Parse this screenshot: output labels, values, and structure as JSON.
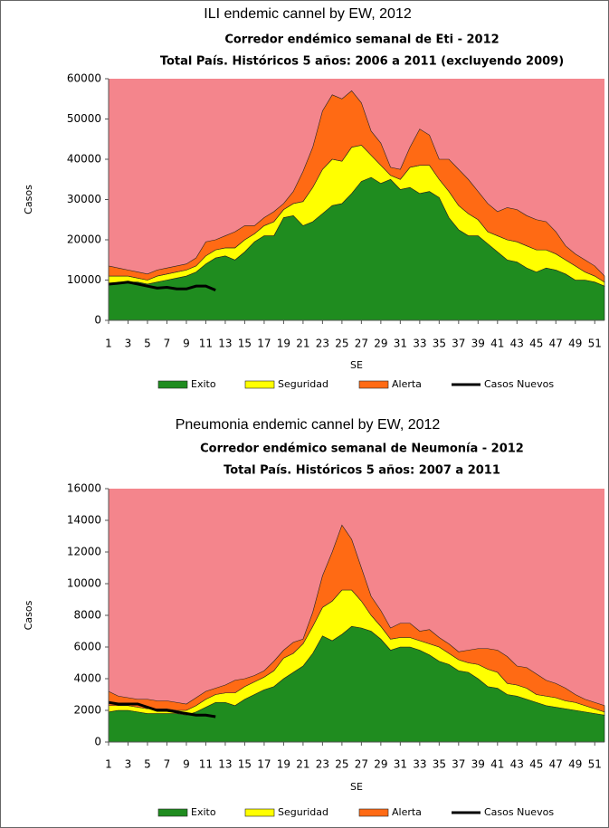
{
  "chart_data": [
    {
      "type": "area",
      "caption": "ILI endemic cannel by EW, 2012",
      "title": "Corredor endémico semanal de Eti - 2012",
      "subtitle": "Total País. Históricos 5 años: 2006 a 2011 (excluyendo 2009)",
      "xlabel": "SE",
      "ylabel": "Casos",
      "stacked": true,
      "background": "#f4858c",
      "legend": "bottom",
      "x": [
        1,
        2,
        3,
        4,
        5,
        6,
        7,
        8,
        9,
        10,
        11,
        12,
        13,
        14,
        15,
        16,
        17,
        18,
        19,
        20,
        21,
        22,
        23,
        24,
        25,
        26,
        27,
        28,
        29,
        30,
        31,
        32,
        33,
        34,
        35,
        36,
        37,
        38,
        39,
        40,
        41,
        42,
        43,
        44,
        45,
        46,
        47,
        48,
        49,
        50,
        51,
        52
      ],
      "xlim": [
        1,
        52
      ],
      "xticks": [
        1,
        3,
        5,
        7,
        9,
        11,
        13,
        15,
        17,
        19,
        21,
        23,
        25,
        27,
        29,
        31,
        33,
        35,
        37,
        39,
        41,
        43,
        45,
        47,
        49,
        51
      ],
      "ylim": [
        0,
        60000
      ],
      "yticks": [
        0,
        10000,
        20000,
        30000,
        40000,
        50000,
        60000
      ],
      "series": [
        {
          "name": "Exito",
          "color": "#1f8c1f",
          "values": [
            9000,
            9500,
            9500,
            9500,
            9000,
            9500,
            10000,
            10500,
            11000,
            12000,
            14000,
            15500,
            16000,
            15000,
            17000,
            19500,
            21000,
            21000,
            25500,
            26000,
            23500,
            24500,
            26500,
            28500,
            29000,
            31500,
            34500,
            35500,
            34000,
            35000,
            32500,
            33000,
            31500,
            32000,
            30500,
            25500,
            22500,
            21000,
            21000,
            19000,
            17000,
            15000,
            14500,
            13000,
            12000,
            13000,
            12500,
            11500,
            10000,
            10000,
            9500,
            8500
          ]
        },
        {
          "name": "Seguridad",
          "color": "#ffff00",
          "values": [
            2000,
            1500,
            1500,
            1000,
            1000,
            1500,
            1500,
            1500,
            1500,
            1500,
            2000,
            2000,
            2000,
            3000,
            3000,
            2000,
            2500,
            3500,
            2000,
            3000,
            6000,
            8500,
            11000,
            11500,
            10500,
            11500,
            9000,
            5500,
            4500,
            1000,
            2500,
            5000,
            7000,
            6500,
            4500,
            6500,
            6000,
            5500,
            4000,
            3000,
            4000,
            5000,
            5000,
            5500,
            5500,
            4500,
            4000,
            3500,
            3500,
            2000,
            1500,
            1000
          ]
        },
        {
          "name": "Alerta",
          "color": "#ff6a14",
          "values": [
            2500,
            2000,
            1500,
            1500,
            1500,
            1500,
            1500,
            1500,
            1500,
            2000,
            3500,
            2500,
            3000,
            4000,
            3500,
            2000,
            2000,
            2500,
            1500,
            3000,
            7500,
            10000,
            14500,
            16000,
            15500,
            14000,
            10500,
            6000,
            5500,
            2000,
            2500,
            5000,
            9000,
            7500,
            5000,
            8000,
            9000,
            8500,
            7000,
            7000,
            6000,
            8000,
            8000,
            7500,
            7500,
            7000,
            5500,
            3500,
            3000,
            3000,
            2500,
            1500
          ]
        },
        {
          "name": "Casos Nuevos",
          "type": "line",
          "color": "#000000",
          "values": [
            9000,
            9200,
            9500,
            9000,
            8500,
            8000,
            8200,
            7800,
            7800,
            8500,
            8500,
            7500,
            null,
            null,
            null,
            null,
            null,
            null,
            null,
            null,
            null,
            null,
            null,
            null,
            null,
            null,
            null,
            null,
            null,
            null,
            null,
            null,
            null,
            null,
            null,
            null,
            null,
            null,
            null,
            null,
            null,
            null,
            null,
            null,
            null,
            null,
            null,
            null,
            null,
            null,
            null,
            null
          ]
        }
      ]
    },
    {
      "type": "area",
      "caption": "Pneumonia endemic cannel by EW, 2012",
      "title": "Corredor endémico semanal de Neumonía - 2012",
      "subtitle": "Total País. Históricos 5 años: 2007 a 2011",
      "xlabel": "SE",
      "ylabel": "Casos",
      "stacked": true,
      "background": "#f4858c",
      "legend": "bottom",
      "x": [
        1,
        2,
        3,
        4,
        5,
        6,
        7,
        8,
        9,
        10,
        11,
        12,
        13,
        14,
        15,
        16,
        17,
        18,
        19,
        20,
        21,
        22,
        23,
        24,
        25,
        26,
        27,
        28,
        29,
        30,
        31,
        32,
        33,
        34,
        35,
        36,
        37,
        38,
        39,
        40,
        41,
        42,
        43,
        44,
        45,
        46,
        47,
        48,
        49,
        50,
        51,
        52
      ],
      "xlim": [
        1,
        52
      ],
      "xticks": [
        1,
        3,
        5,
        7,
        9,
        11,
        13,
        15,
        17,
        19,
        21,
        23,
        25,
        27,
        29,
        31,
        33,
        35,
        37,
        39,
        41,
        43,
        45,
        47,
        49,
        51
      ],
      "ylim": [
        0,
        16000
      ],
      "yticks": [
        0,
        2000,
        4000,
        6000,
        8000,
        10000,
        12000,
        14000,
        16000
      ],
      "series": [
        {
          "name": "Exito",
          "color": "#1f8c1f",
          "values": [
            1900,
            2000,
            2000,
            1900,
            1800,
            1800,
            1800,
            1800,
            1700,
            1900,
            2200,
            2500,
            2500,
            2300,
            2700,
            3000,
            3300,
            3500,
            4000,
            4400,
            4800,
            5600,
            6700,
            6400,
            6800,
            7300,
            7200,
            7000,
            6500,
            5800,
            6000,
            6000,
            5800,
            5500,
            5100,
            4900,
            4500,
            4400,
            4000,
            3500,
            3400,
            3000,
            2900,
            2700,
            2500,
            2300,
            2200,
            2100,
            2000,
            1900,
            1800,
            1700
          ]
        },
        {
          "name": "Seguridad",
          "color": "#ffff00",
          "values": [
            400,
            300,
            300,
            300,
            300,
            300,
            300,
            200,
            300,
            400,
            500,
            500,
            600,
            800,
            800,
            800,
            800,
            1000,
            1300,
            1200,
            1400,
            1700,
            1800,
            2500,
            2800,
            2300,
            1700,
            1000,
            800,
            700,
            600,
            600,
            600,
            700,
            900,
            700,
            700,
            600,
            900,
            1100,
            1000,
            700,
            700,
            700,
            500,
            600,
            600,
            500,
            500,
            400,
            300,
            200
          ]
        },
        {
          "name": "Alerta",
          "color": "#ff6a14",
          "values": [
            900,
            600,
            500,
            500,
            600,
            500,
            500,
            500,
            400,
            500,
            500,
            400,
            500,
            800,
            500,
            400,
            400,
            600,
            500,
            700,
            300,
            900,
            2000,
            3100,
            4100,
            3200,
            2100,
            1200,
            1000,
            700,
            900,
            900,
            600,
            900,
            600,
            600,
            500,
            800,
            1000,
            1300,
            1400,
            1700,
            1200,
            1300,
            1300,
            1000,
            900,
            800,
            500,
            400,
            400,
            400
          ]
        },
        {
          "name": "Casos Nuevos",
          "type": "line",
          "color": "#000000",
          "values": [
            2500,
            2400,
            2400,
            2400,
            2200,
            2000,
            2000,
            1900,
            1800,
            1700,
            1700,
            1600,
            null,
            null,
            null,
            null,
            null,
            null,
            null,
            null,
            null,
            null,
            null,
            null,
            null,
            null,
            null,
            null,
            null,
            null,
            null,
            null,
            null,
            null,
            null,
            null,
            null,
            null,
            null,
            null,
            null,
            null,
            null,
            null,
            null,
            null,
            null,
            null,
            null,
            null,
            null,
            null
          ]
        }
      ]
    }
  ]
}
